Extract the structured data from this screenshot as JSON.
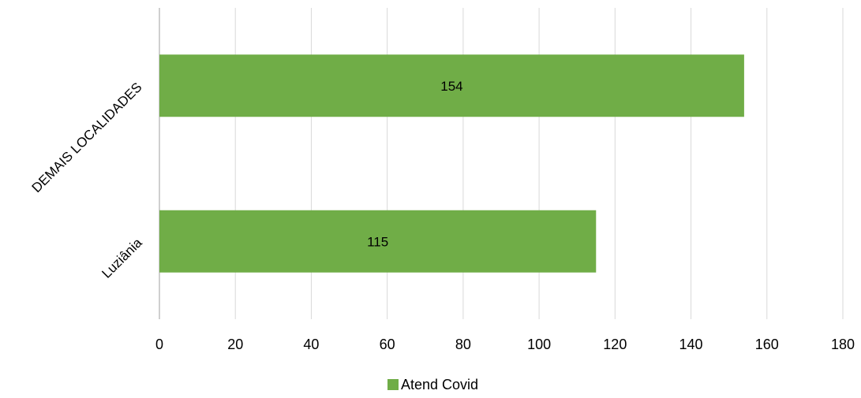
{
  "chart_data": {
    "type": "bar",
    "orientation": "horizontal",
    "categories": [
      "DEMAIS LOCALIDADES",
      "Luziânia"
    ],
    "series": [
      {
        "name": "Atend Covid",
        "values": [
          154,
          115
        ]
      }
    ],
    "xlim": [
      0,
      180
    ],
    "xticks": [
      0,
      20,
      40,
      60,
      80,
      100,
      120,
      140,
      160,
      180
    ],
    "grid": true,
    "legend_position": "bottom",
    "data_labels": true,
    "colors": {
      "bar": "#70AD47",
      "grid": "#D9D9D9",
      "axis": "#BFBFBF",
      "text": "#000000"
    }
  }
}
